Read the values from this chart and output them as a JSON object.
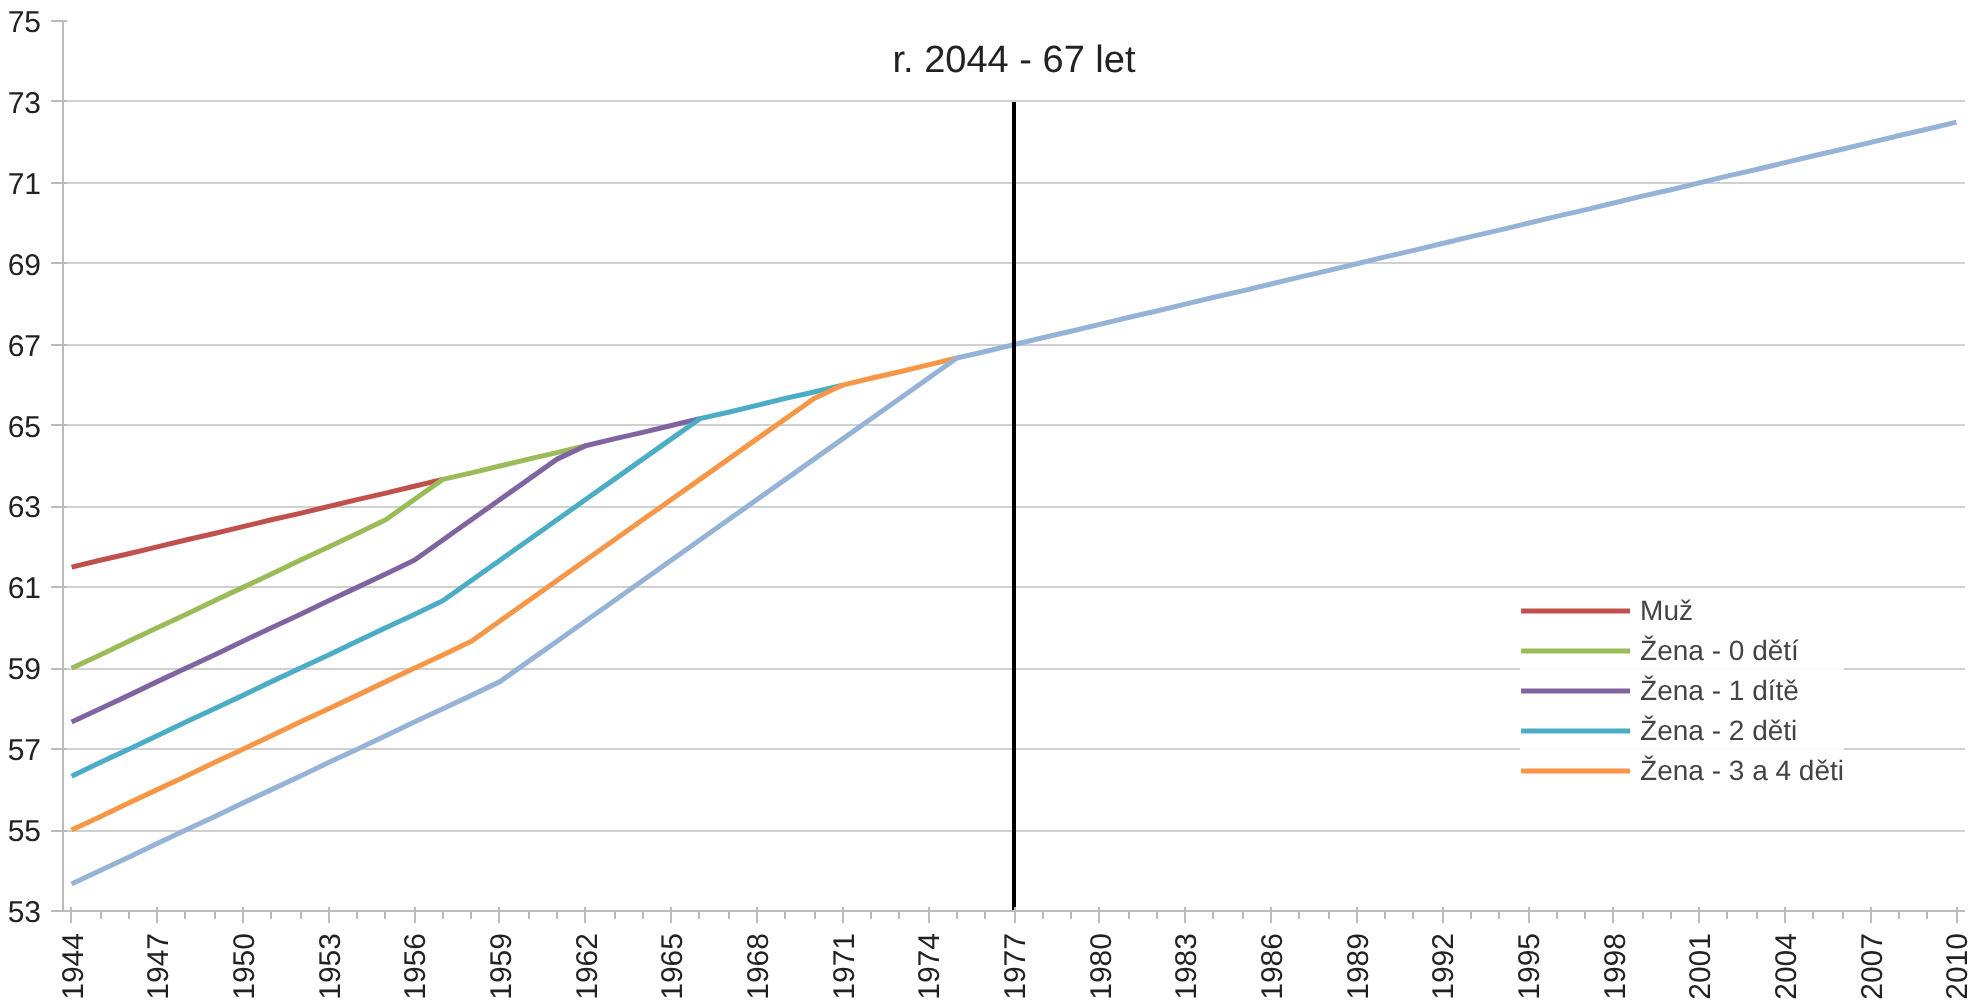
{
  "chart_data": {
    "type": "line",
    "x": [
      1944,
      1945,
      1946,
      1947,
      1948,
      1949,
      1950,
      1951,
      1952,
      1953,
      1954,
      1955,
      1956,
      1957,
      1958,
      1959,
      1960,
      1961,
      1962,
      1963,
      1964,
      1965,
      1966,
      1967,
      1968,
      1969,
      1970,
      1971,
      1972,
      1973,
      1974,
      1975,
      1976,
      1977,
      1978,
      1979,
      1980,
      1981,
      1982,
      1983,
      1984,
      1985,
      1986,
      1987,
      1988,
      1989,
      1990,
      1991,
      1992,
      1993,
      1994,
      1995,
      1996,
      1997,
      1998,
      1999,
      2000,
      2001,
      2002,
      2003,
      2004,
      2005,
      2006,
      2007,
      2008,
      2009,
      2010
    ],
    "series": [
      {
        "name": "Muž",
        "color": "#c0504d",
        "x": [
          1944,
          1945,
          1946,
          1947,
          1948,
          1949,
          1950,
          1951,
          1952,
          1953,
          1954,
          1955,
          1956,
          1957
        ],
        "values": [
          61.5,
          61.67,
          61.83,
          62,
          62.17,
          62.33,
          62.5,
          62.67,
          62.83,
          63,
          63.17,
          63.33,
          63.5,
          63.67
        ]
      },
      {
        "name": "Žena - 0 dětí",
        "color": "#9bbb59",
        "x": [
          1944,
          1945,
          1946,
          1947,
          1948,
          1949,
          1950,
          1951,
          1952,
          1953,
          1954,
          1955,
          1956,
          1957,
          1958,
          1959,
          1960,
          1961,
          1962
        ],
        "values": [
          59,
          59.33,
          59.67,
          60,
          60.33,
          60.67,
          61,
          61.33,
          61.67,
          62,
          62.33,
          62.67,
          63.17,
          63.67,
          63.83,
          64,
          64.17,
          64.33,
          64.5
        ]
      },
      {
        "name": "Žena - 1 dítě",
        "color": "#8064a2",
        "x": [
          1944,
          1945,
          1946,
          1947,
          1948,
          1949,
          1950,
          1951,
          1952,
          1953,
          1954,
          1955,
          1956,
          1957,
          1958,
          1959,
          1960,
          1961,
          1962,
          1963,
          1964,
          1965,
          1966
        ],
        "values": [
          57.67,
          58,
          58.33,
          58.67,
          59,
          59.33,
          59.67,
          60,
          60.33,
          60.67,
          61,
          61.33,
          61.67,
          62.17,
          62.67,
          63.17,
          63.67,
          64.17,
          64.5,
          64.67,
          64.83,
          65,
          65.17
        ]
      },
      {
        "name": "Žena - 2 děti",
        "color": "#4bacc6",
        "x": [
          1944,
          1945,
          1946,
          1947,
          1948,
          1949,
          1950,
          1951,
          1952,
          1953,
          1954,
          1955,
          1956,
          1957,
          1958,
          1959,
          1960,
          1961,
          1962,
          1963,
          1964,
          1965,
          1966,
          1967,
          1968,
          1969,
          1970,
          1971
        ],
        "values": [
          56.33,
          56.67,
          57,
          57.33,
          57.67,
          58,
          58.33,
          58.67,
          59,
          59.33,
          59.67,
          60,
          60.33,
          60.67,
          61.17,
          61.67,
          62.17,
          62.67,
          63.17,
          63.67,
          64.17,
          64.67,
          65.17,
          65.33,
          65.5,
          65.67,
          65.83,
          66
        ]
      },
      {
        "name": "Žena - 3 a 4 děti",
        "color": "#f79646",
        "x": [
          1944,
          1945,
          1946,
          1947,
          1948,
          1949,
          1950,
          1951,
          1952,
          1953,
          1954,
          1955,
          1956,
          1957,
          1958,
          1959,
          1960,
          1961,
          1962,
          1963,
          1964,
          1965,
          1966,
          1967,
          1968,
          1969,
          1970,
          1971,
          1972,
          1973,
          1974,
          1975
        ],
        "values": [
          55,
          55.33,
          55.67,
          56,
          56.33,
          56.67,
          57,
          57.33,
          57.67,
          58,
          58.33,
          58.67,
          59,
          59.33,
          59.67,
          60.17,
          60.67,
          61.17,
          61.67,
          62.17,
          62.67,
          63.17,
          63.67,
          64.17,
          64.67,
          65.17,
          65.67,
          66,
          66.17,
          66.33,
          66.5,
          66.67
        ]
      },
      {
        "color": "#95b3d7",
        "values": [
          53.67,
          54,
          54.33,
          54.67,
          55,
          55.33,
          55.67,
          56,
          56.33,
          56.67,
          57,
          57.33,
          57.67,
          58,
          58.33,
          58.67,
          59.17,
          59.67,
          60.17,
          60.67,
          61.17,
          61.67,
          62.17,
          62.67,
          63.17,
          63.67,
          64.17,
          64.67,
          65.17,
          65.67,
          66.17,
          66.67,
          66.83,
          67,
          67.17,
          67.33,
          67.5,
          67.67,
          67.83,
          68,
          68.17,
          68.33,
          68.5,
          68.67,
          68.83,
          69,
          69.17,
          69.33,
          69.5,
          69.67,
          69.83,
          70,
          70.17,
          70.33,
          70.5,
          70.67,
          70.83,
          71,
          71.17,
          71.33,
          71.5,
          71.67,
          71.83,
          72,
          72.17,
          72.33,
          72.5
        ]
      }
    ],
    "xlim": [
      1943.7,
      2010.3
    ],
    "xticks": [
      1944,
      1947,
      1950,
      1953,
      1956,
      1959,
      1962,
      1965,
      1968,
      1971,
      1974,
      1977,
      1980,
      1983,
      1986,
      1989,
      1992,
      1995,
      1998,
      2001,
      2004,
      2007,
      2010
    ],
    "ylim": [
      53,
      75
    ],
    "yticks": [
      53,
      55,
      57,
      59,
      61,
      63,
      65,
      67,
      69,
      71,
      73,
      75
    ],
    "ref_lines": [
      {
        "axis": "x",
        "value": 1977,
        "label": "r. 2044 - 67 let",
        "color": "#000000"
      }
    ],
    "grid": "y",
    "legend": "bottom right"
  }
}
